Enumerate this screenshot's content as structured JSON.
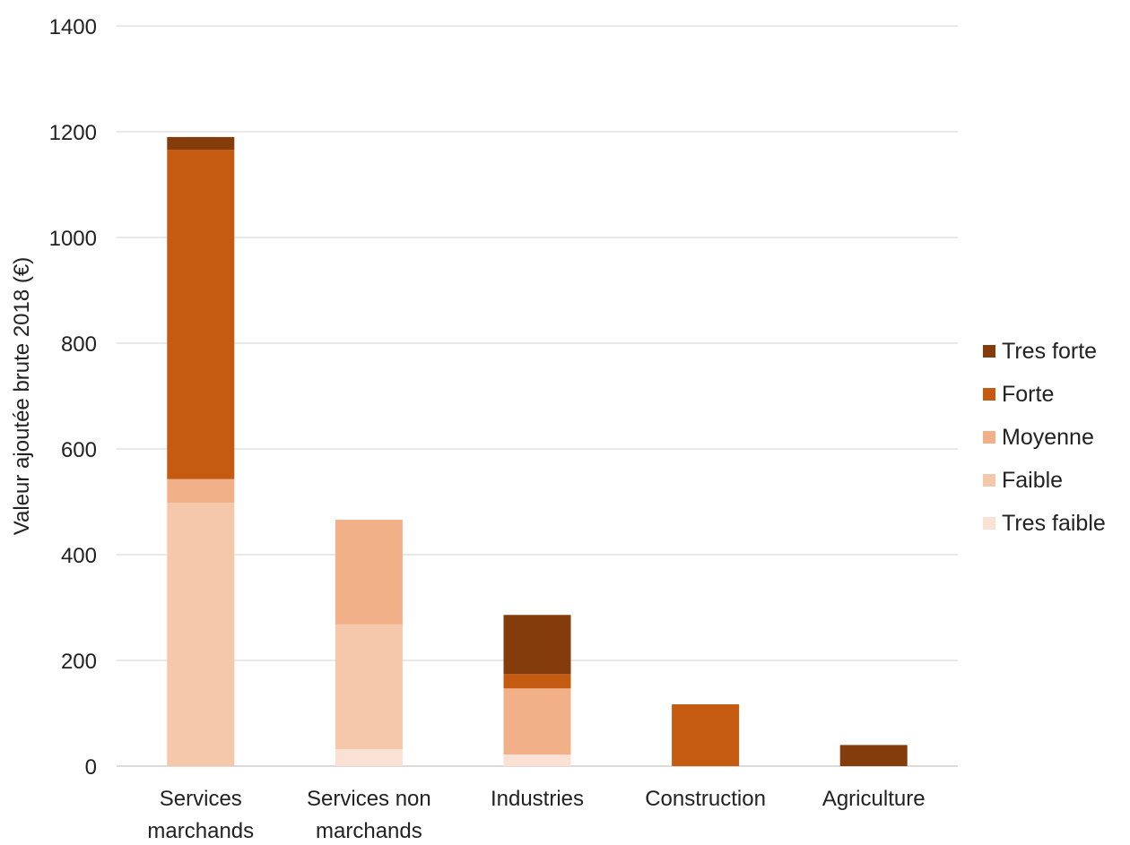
{
  "chart_data": {
    "type": "bar",
    "stacked": true,
    "categories": [
      [
        "Services",
        "marchands"
      ],
      [
        "Services non",
        "marchands"
      ],
      [
        "Industries"
      ],
      [
        "Construction"
      ],
      [
        "Agriculture"
      ]
    ],
    "series": [
      {
        "name": "Tres faible",
        "color": "#fbe1d3",
        "values": [
          0,
          32,
          22,
          0,
          0
        ]
      },
      {
        "name": "Faible",
        "color": "#f6c8ab",
        "values": [
          498,
          236,
          0,
          0,
          0
        ]
      },
      {
        "name": "Moyenne",
        "color": "#f2b088",
        "values": [
          45,
          198,
          125,
          0,
          0
        ]
      },
      {
        "name": "Forte",
        "color": "#c55a11",
        "values": [
          623,
          0,
          27,
          117,
          0
        ]
      },
      {
        "name": "Tres forte",
        "color": "#843c0c",
        "values": [
          24,
          0,
          112,
          0,
          40
        ]
      }
    ],
    "ylabel": "Valeur ajoutée brute 2018 (€)",
    "ylim": [
      0,
      1400
    ],
    "yticks": [
      0,
      200,
      400,
      600,
      800,
      1000,
      1200,
      1400
    ],
    "grid": true,
    "legend_position": "right",
    "legend_order": [
      "Tres forte",
      "Forte",
      "Moyenne",
      "Faible",
      "Tres faible"
    ]
  }
}
